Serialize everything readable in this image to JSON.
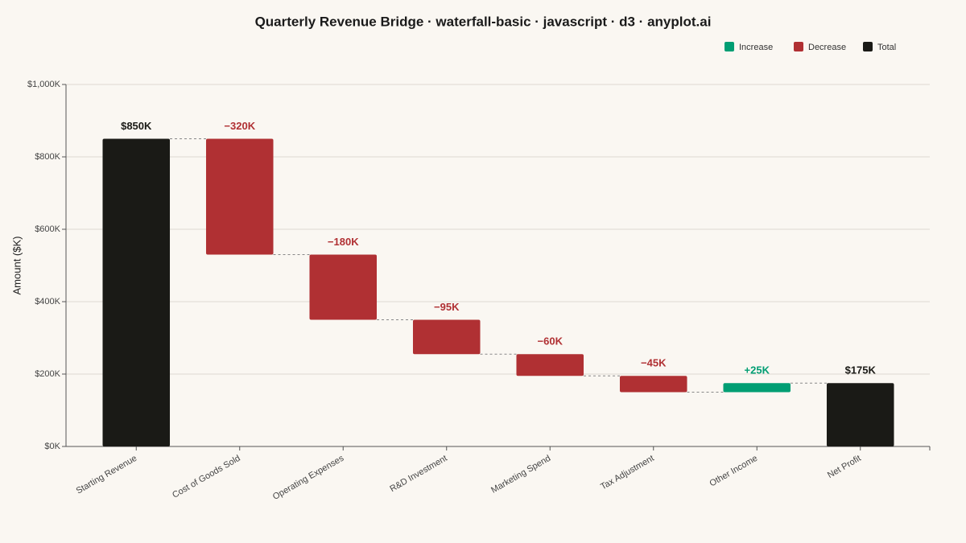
{
  "chart_data": {
    "type": "waterfall",
    "title": "Quarterly Revenue Bridge · waterfall-basic · javascript · d3 · anyplot.ai",
    "y_label": "Amount ($K)",
    "categories": [
      "Starting Revenue",
      "Cost of Goods Sold",
      "Operating Expenses",
      "R&D Investment",
      "Marketing Spend",
      "Tax Adjustment",
      "Other Income",
      "Net Profit"
    ],
    "values": [
      850,
      -320,
      -180,
      -95,
      -60,
      -45,
      25,
      175
    ],
    "value_labels": [
      "$850K",
      "−320K",
      "−180K",
      "−95K",
      "−60K",
      "−45K",
      "+25K",
      "$175K"
    ],
    "measure": [
      "total",
      "relative",
      "relative",
      "relative",
      "relative",
      "relative",
      "relative",
      "total"
    ],
    "legend": [
      {
        "name": "Increase",
        "color": "#009e73"
      },
      {
        "name": "Decrease",
        "color": "#b03033"
      },
      {
        "name": "Total",
        "color": "#1a1a16"
      }
    ],
    "ylim": [
      0,
      1000
    ],
    "yticks": [
      {
        "value": 0,
        "label": "$0K"
      },
      {
        "value": 200,
        "label": "$200K"
      },
      {
        "value": 400,
        "label": "$400K"
      },
      {
        "value": 600,
        "label": "$600K"
      },
      {
        "value": 800,
        "label": "$800K"
      },
      {
        "value": 1000,
        "label": "$1,000K"
      }
    ],
    "grid": true,
    "legend_position": "top-right"
  }
}
